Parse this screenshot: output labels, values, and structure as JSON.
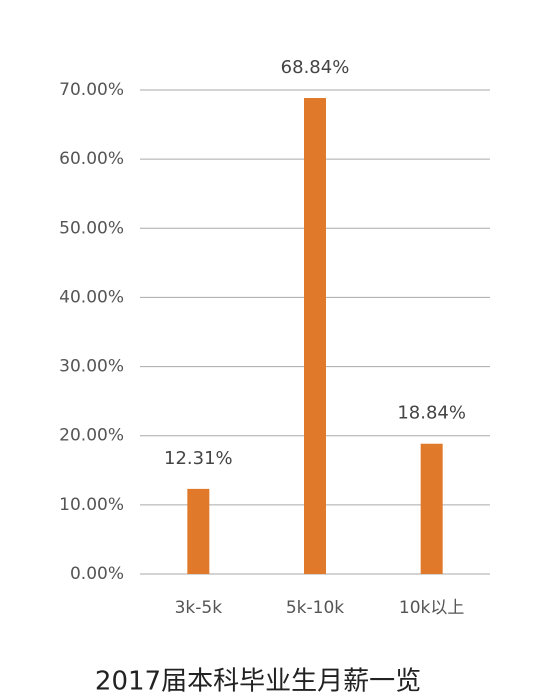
{
  "chart_data": {
    "type": "bar",
    "title": "2017届本科毕业生月薪一览",
    "categories": [
      "3k-5k",
      "5k-10k",
      "10k以上"
    ],
    "values": [
      12.31,
      68.84,
      18.84
    ],
    "value_labels": [
      "12.31%",
      "68.84%",
      "18.84%"
    ],
    "color": "#e07a2a",
    "ylim": [
      0,
      70
    ],
    "yticks": [
      {
        "value": 0,
        "label": "0.00%"
      },
      {
        "value": 10,
        "label": "10.00%"
      },
      {
        "value": 20,
        "label": "20.00%"
      },
      {
        "value": 30,
        "label": "30.00%"
      },
      {
        "value": 40,
        "label": "40.00%"
      },
      {
        "value": 50,
        "label": "50.00%"
      },
      {
        "value": 60,
        "label": "60.00%"
      },
      {
        "value": 70,
        "label": "70.00%"
      }
    ],
    "grid": true
  }
}
